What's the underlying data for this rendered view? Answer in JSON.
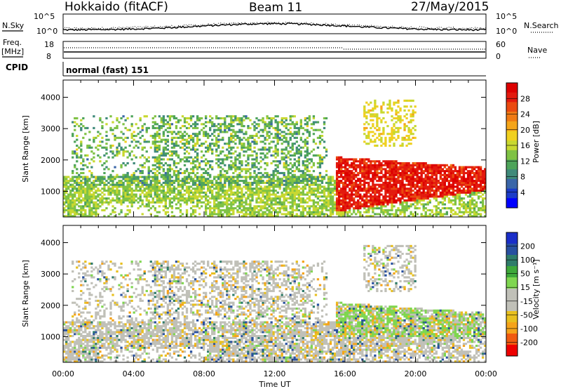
{
  "header": {
    "radar": "Hokkaido (fitACF)",
    "beam": "Beam 11",
    "date": "27/May/2015"
  },
  "top_panels": {
    "nsky_label": "N.Sky",
    "nsky_ticks": [
      "10^5",
      "10^0"
    ],
    "nsearch_label": "N.Search",
    "nsearch_ticks": [
      "10^5",
      "10^0"
    ],
    "freq_label_1": "Freq.",
    "freq_label_2": "[MHz]",
    "freq_ticks": [
      "18",
      "8"
    ],
    "nave_label": "Nave",
    "nave_ticks": [
      "60",
      "0"
    ],
    "cpid_label": "CPID",
    "cpid_value": "normal (fast) 151"
  },
  "chart_data": [
    {
      "type": "heatmap",
      "name": "power",
      "ylabel": "Slant Range [km]",
      "xlabel": "Time UT",
      "x_ticks": [
        "00:00",
        "04:00",
        "08:00",
        "12:00",
        "16:00",
        "20:00",
        "00:00"
      ],
      "xlim_hours": [
        0,
        24
      ],
      "y_ticks": [
        "4000",
        "3000",
        "2000",
        "1000"
      ],
      "ylim_km": [
        180,
        4550
      ],
      "colorbar": {
        "label": "Power [dB]",
        "ticks": [
          "28",
          "24",
          "20",
          "16",
          "12",
          "8",
          "4"
        ],
        "range": [
          0,
          32
        ],
        "colors": [
          "#0000ff",
          "#1c3cc8",
          "#3a66a8",
          "#3f8a7a",
          "#4ea45a",
          "#7fc244",
          "#c8d830",
          "#f0d020",
          "#f5a51a",
          "#f07a14",
          "#ea4a10",
          "#e31a0e",
          "#dd0000"
        ]
      }
    },
    {
      "type": "heatmap",
      "name": "velocity",
      "ylabel": "Slant Range [km]",
      "xlabel": "Time UT",
      "x_ticks": [
        "00:00",
        "04:00",
        "08:00",
        "12:00",
        "16:00",
        "20:00",
        "00:00"
      ],
      "xlim_hours": [
        0,
        24
      ],
      "y_ticks": [
        "4000",
        "3000",
        "2000",
        "1000"
      ],
      "ylim_km": [
        180,
        4550
      ],
      "colorbar": {
        "label": "Velocity [m s⁻¹]",
        "ticks": [
          "200",
          "100",
          "50",
          "15",
          "-15",
          "-50",
          "-100",
          "-200"
        ],
        "range": [
          -250,
          250
        ],
        "colors": [
          "#ee0000",
          "#f05a10",
          "#f5a31a",
          "#e8c020",
          "#c0c0b8",
          "#c0c0b8",
          "#7fd650",
          "#3ea83a",
          "#2f7c6a",
          "#2850a0",
          "#1a2ec8"
        ]
      }
    }
  ]
}
